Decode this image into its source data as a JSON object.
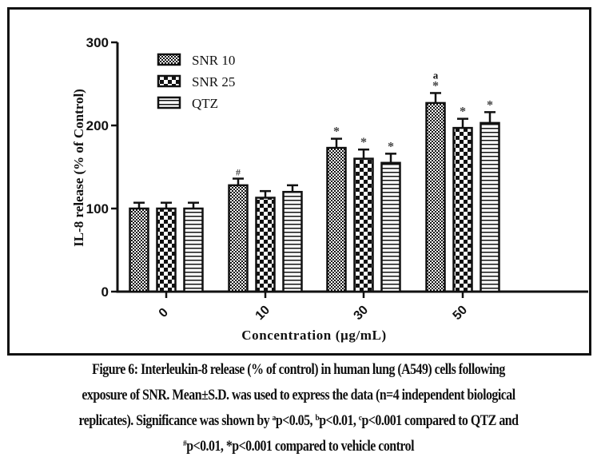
{
  "chart_data": {
    "type": "bar",
    "title": "",
    "xlabel": "Concentration (µg/mL)",
    "ylabel": "IL-8 release (% of Control)",
    "ylim": [
      0,
      300
    ],
    "yticks": [
      0,
      100,
      200,
      300
    ],
    "ytick_labels": [
      "0",
      "100",
      "200",
      "300"
    ],
    "categories": [
      "0",
      "10",
      "30",
      "50"
    ],
    "legend_position": "top-left",
    "grid": false,
    "series": [
      {
        "name": "SNR 10",
        "pattern": "fine-checker",
        "values": [
          100,
          128,
          173,
          227
        ],
        "errors": [
          7,
          8,
          11,
          12
        ],
        "annotations": [
          "",
          "#",
          "*",
          "*"
        ],
        "top_annotations": [
          "",
          "",
          "",
          "a"
        ]
      },
      {
        "name": "SNR 25",
        "pattern": "coarse-checker",
        "values": [
          100,
          113,
          160,
          197
        ],
        "errors": [
          7,
          8,
          11,
          11
        ],
        "annotations": [
          "",
          "",
          "*",
          "*"
        ],
        "top_annotations": [
          "",
          "",
          "",
          ""
        ]
      },
      {
        "name": "QTZ",
        "pattern": "horizontal-stripes",
        "values": [
          100,
          120,
          155,
          203
        ],
        "errors": [
          7,
          8,
          11,
          13
        ],
        "annotations": [
          "",
          "",
          "*",
          "*"
        ],
        "top_annotations": [
          "",
          "",
          "",
          ""
        ]
      }
    ]
  },
  "caption": {
    "line1": "Figure 6: Interleukin-8 release (% of control) in human lung (A549) cells following",
    "line2": "exposure of SNR. Mean±S.D. was used to express the data (n=4 independent biological",
    "line3_pre": "replicates). Significance was shown by ",
    "sup_a": "a",
    "line3_a": "p<0.05, ",
    "sup_b": "b",
    "line3_b": "p<0.01, ",
    "sup_c": "c",
    "line3_c": "p<0.001 compared to QTZ and",
    "sup_hash": "#",
    "line4": "p<0.01, *p<0.001 compared to vehicle control"
  },
  "colors": {
    "ink": "#111111",
    "annotation": "#444444",
    "background": "#ffffff"
  }
}
